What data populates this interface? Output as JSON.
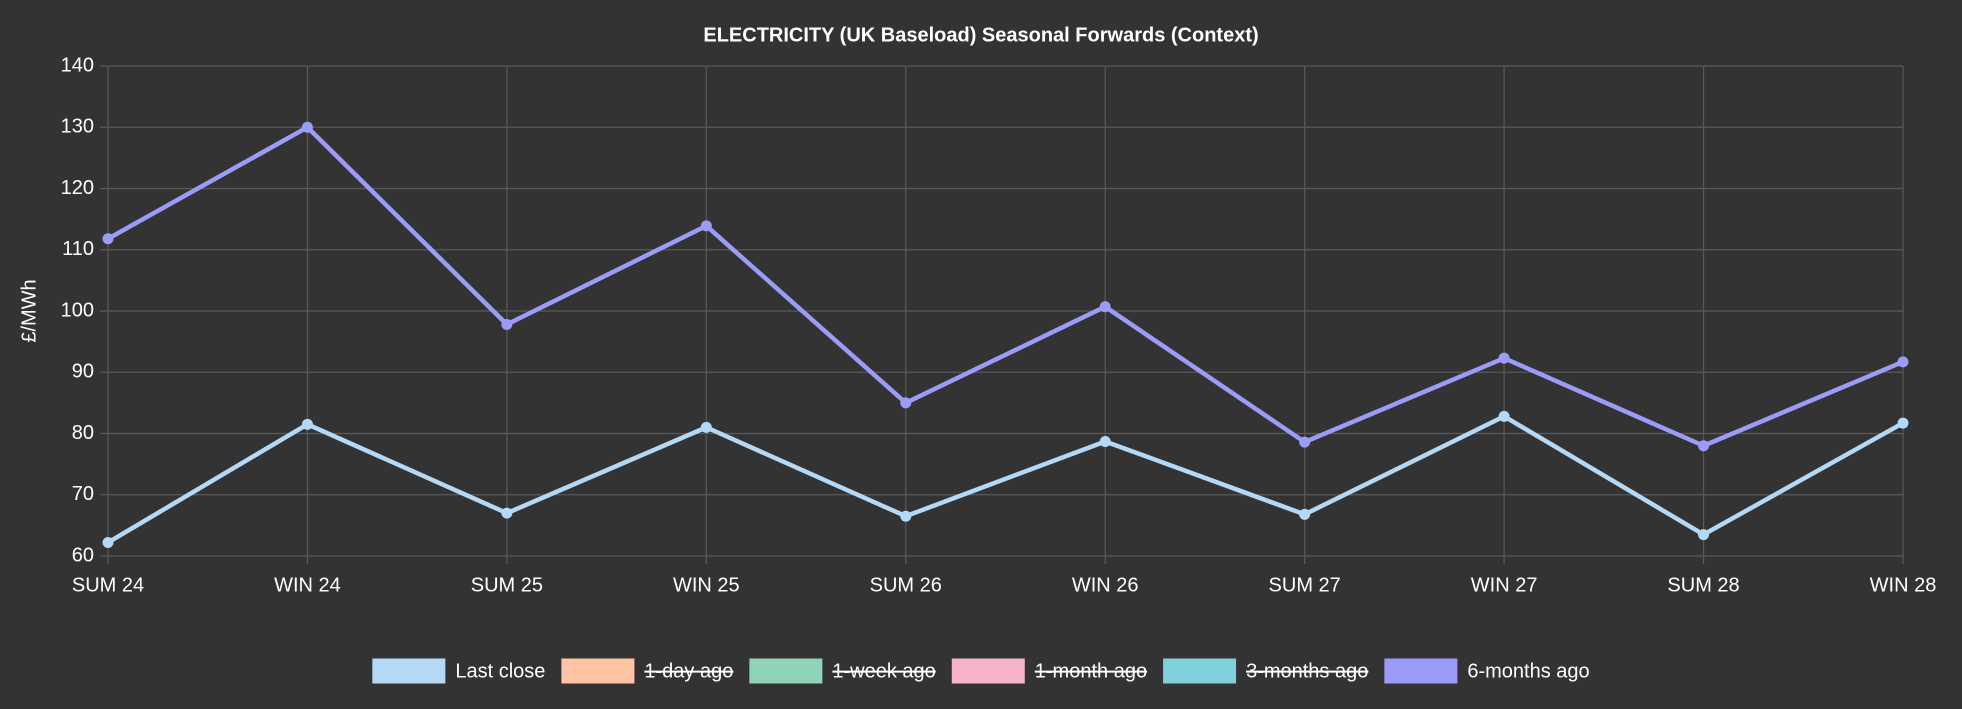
{
  "chart_data": {
    "type": "line",
    "title": "ELECTRICITY (UK Baseload) Seasonal Forwards (Context)",
    "y_label": "£/MWh",
    "categories": [
      "SUM 24",
      "WIN 24",
      "SUM 25",
      "WIN 25",
      "SUM 26",
      "WIN 26",
      "SUM 27",
      "WIN 27",
      "SUM 28",
      "WIN 28"
    ],
    "series": [
      {
        "name": "Last close",
        "color": "#b3d9f7",
        "values": [
          62.2,
          81.5,
          67,
          81,
          66.5,
          78.7,
          66.8,
          82.8,
          63.5,
          81.7
        ]
      },
      {
        "name": "1-day ago",
        "color": "#ffc4a3",
        "hidden": true
      },
      {
        "name": "1-week ago",
        "color": "#8fd3b8",
        "hidden": true
      },
      {
        "name": "1-month ago",
        "color": "#f7b3cb",
        "hidden": true
      },
      {
        "name": "3-months ago",
        "color": "#80d0db",
        "hidden": true
      },
      {
        "name": "6-months ago",
        "color": "#9b9cf8",
        "values": [
          111.8,
          130,
          97.8,
          113.9,
          85,
          100.7,
          78.6,
          92.3,
          78,
          91.7
        ]
      }
    ],
    "ylim": [
      60,
      140
    ],
    "yticks": [
      60,
      70,
      80,
      90,
      100,
      110,
      120,
      130,
      140
    ],
    "grid": true,
    "legend": "bottom"
  }
}
